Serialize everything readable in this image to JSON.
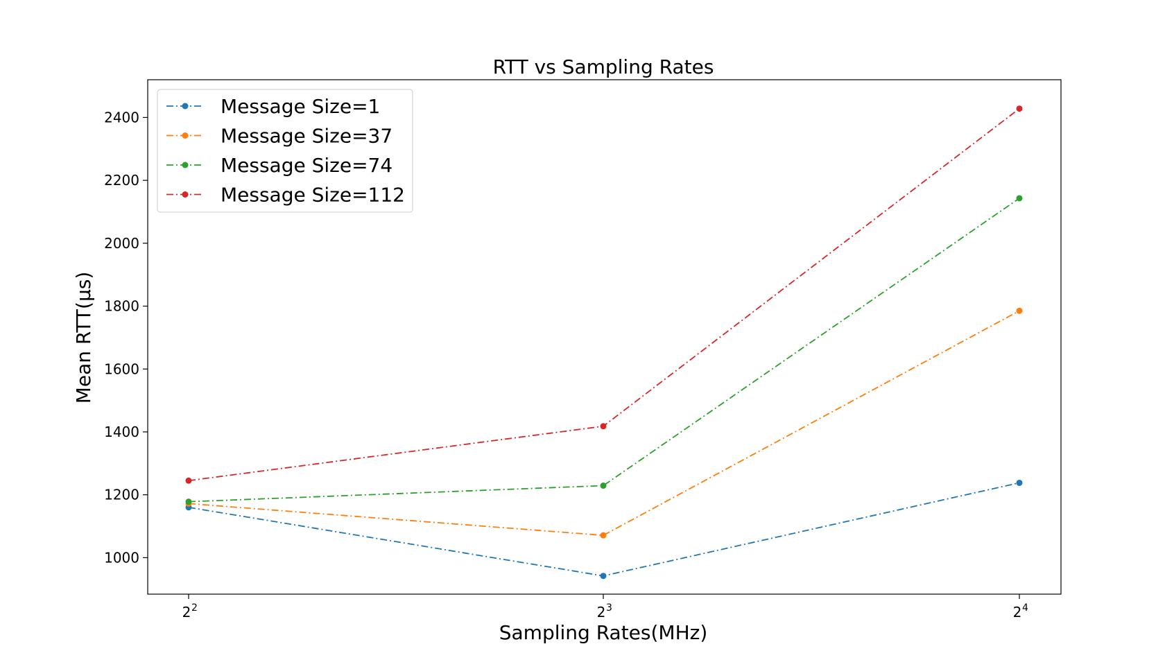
{
  "chart_data": {
    "type": "line",
    "title": "RTT vs Sampling Rates",
    "xlabel": "Sampling Rates(MHz)",
    "ylabel": "Mean RTT(μs)",
    "x": [
      4,
      8,
      16
    ],
    "x_ticks": [
      {
        "base": "2",
        "exp": "2"
      },
      {
        "base": "2",
        "exp": "3"
      },
      {
        "base": "2",
        "exp": "4"
      }
    ],
    "x_scale": "log2",
    "y_ticks": [
      1000,
      1200,
      1400,
      1600,
      1800,
      2000,
      2200,
      2400
    ],
    "ylim": [
      884,
      2520
    ],
    "grid": false,
    "legend_position": "upper-left",
    "series": [
      {
        "name": "Message Size=1",
        "color": "#1f77b4",
        "values": [
          1160,
          942,
          1238
        ]
      },
      {
        "name": "Message Size=37",
        "color": "#ff7f0e",
        "values": [
          1172,
          1071,
          1785
        ]
      },
      {
        "name": "Message Size=74",
        "color": "#2ca02c",
        "values": [
          1178,
          1229,
          2143
        ]
      },
      {
        "name": "Message Size=112",
        "color": "#d62728",
        "values": [
          1245,
          1418,
          2428
        ]
      }
    ]
  }
}
